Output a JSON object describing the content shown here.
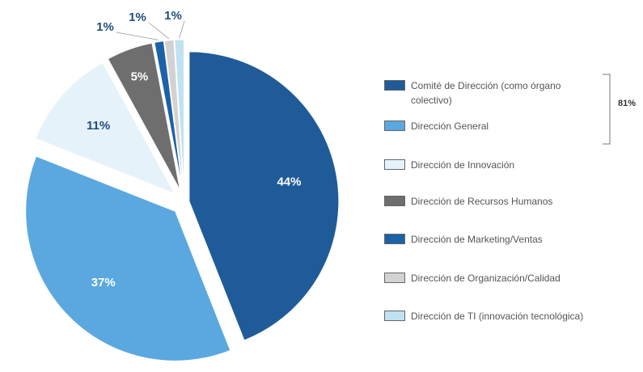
{
  "chart_data": {
    "type": "pie",
    "categories": [
      "Comité de Dirección (como órgano colectivo)",
      "Dirección General",
      "Dirección de Innovación",
      "Dirección de Recursos Humanos",
      "Dirección de Marketing/Ventas",
      "Dirección de Organización/Calidad",
      "Dirección de TI (innovación tecnológica)"
    ],
    "values": [
      44,
      37,
      11,
      5,
      1,
      1,
      1
    ],
    "value_labels": [
      "44%",
      "37%",
      "11%",
      "5%",
      "1%",
      "1%",
      "1%"
    ],
    "colors": [
      "#1f5b98",
      "#5aa8df",
      "#e6f2fa",
      "#6e6e6e",
      "#1c62a6",
      "#d2d2d2",
      "#bfe2f1"
    ],
    "annotation": "81%"
  }
}
